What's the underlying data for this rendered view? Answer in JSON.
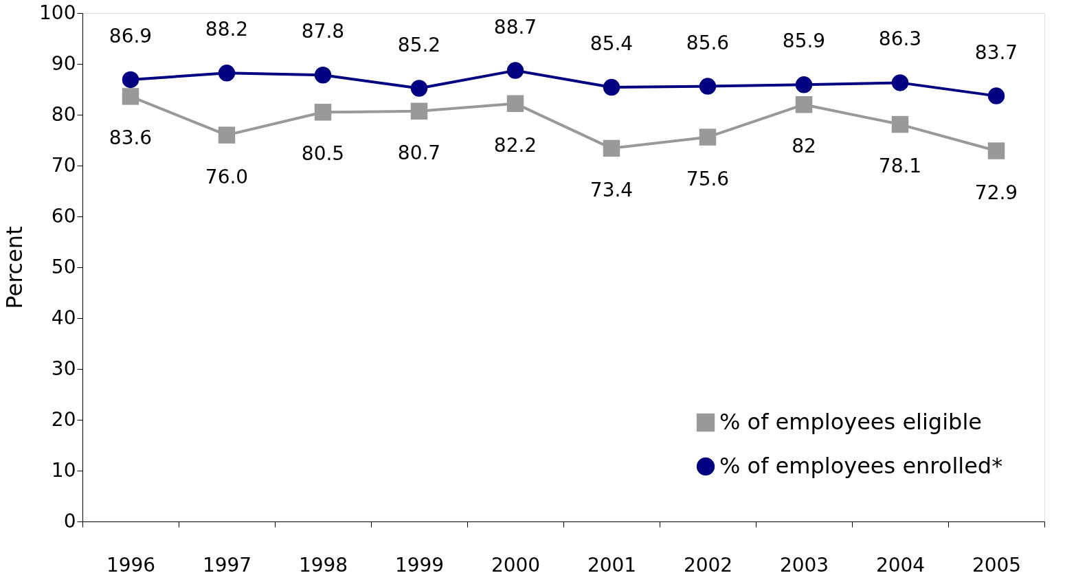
{
  "chart_data": {
    "type": "line",
    "ylabel": "Percent",
    "categories": [
      "1996",
      "1997",
      "1998",
      "1999",
      "2000",
      "2001",
      "2002",
      "2003",
      "2004",
      "2005"
    ],
    "series": [
      {
        "name": "% of employees eligible",
        "color": "#999999",
        "marker": "square",
        "values": [
          83.6,
          76.0,
          80.5,
          80.7,
          82.2,
          73.4,
          75.6,
          82,
          78.1,
          72.9
        ],
        "value_labels": [
          "83.6",
          "76.0",
          "80.5",
          "80.7",
          "82.2",
          "73.4",
          "75.6",
          "82",
          "78.1",
          "72.9"
        ]
      },
      {
        "name": "% of employees enrolled*",
        "color": "#000080",
        "marker": "circle",
        "values": [
          86.9,
          88.2,
          87.8,
          85.2,
          88.7,
          85.4,
          85.6,
          85.9,
          86.3,
          83.7
        ],
        "value_labels": [
          "86.9",
          "88.2",
          "87.8",
          "85.2",
          "88.7",
          "85.4",
          "85.6",
          "85.9",
          "86.3",
          "83.7"
        ]
      }
    ],
    "ylim": [
      0,
      100
    ],
    "yticks": [
      0,
      10,
      20,
      30,
      40,
      50,
      60,
      70,
      80,
      90,
      100
    ],
    "grid": false,
    "legend": "bottom right",
    "line_style": "solid"
  }
}
